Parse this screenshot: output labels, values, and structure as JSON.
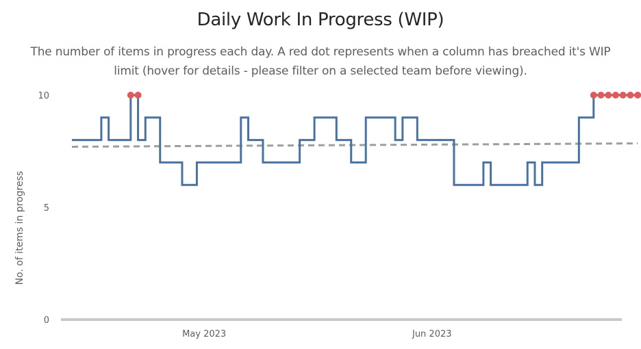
{
  "chart_data": {
    "type": "line",
    "title": "Daily Work In Progress (WIP)",
    "subtitle": "The number of items in progress each day. A red dot represents when a column has breached it's WIP limit (hover for details - please filter on a selected team before viewing).",
    "xlabel": "",
    "ylabel": "No. of items in progress",
    "ylim": [
      0,
      10
    ],
    "yticks": [
      0,
      5,
      10
    ],
    "xlim": [
      "2023-04-13",
      "2023-06-26"
    ],
    "xticks": [
      {
        "date": "2023-05-01",
        "label": "May 2023"
      },
      {
        "date": "2023-06-01",
        "label": "Jun 2023"
      }
    ],
    "grid": false,
    "series": [
      {
        "type": "step",
        "color": "#4a72a0",
        "points": [
          [
            "2023-04-13",
            8
          ],
          [
            "2023-04-17",
            9
          ],
          [
            "2023-04-18",
            8
          ],
          [
            "2023-04-21",
            10
          ],
          [
            "2023-04-22",
            8
          ],
          [
            "2023-04-23",
            9
          ],
          [
            "2023-04-25",
            7
          ],
          [
            "2023-04-28",
            6
          ],
          [
            "2023-04-30",
            7
          ],
          [
            "2023-05-06",
            9
          ],
          [
            "2023-05-07",
            8
          ],
          [
            "2023-05-09",
            7
          ],
          [
            "2023-05-14",
            8
          ],
          [
            "2023-05-16",
            9
          ],
          [
            "2023-05-19",
            8
          ],
          [
            "2023-05-21",
            7
          ],
          [
            "2023-05-23",
            9
          ],
          [
            "2023-05-27",
            8
          ],
          [
            "2023-05-28",
            9
          ],
          [
            "2023-05-30",
            8
          ],
          [
            "2023-06-04",
            6
          ],
          [
            "2023-06-08",
            7
          ],
          [
            "2023-06-09",
            6
          ],
          [
            "2023-06-14",
            7
          ],
          [
            "2023-06-15",
            6
          ],
          [
            "2023-06-16",
            7
          ],
          [
            "2023-06-21",
            9
          ],
          [
            "2023-06-23",
            10
          ],
          [
            "2023-06-29",
            10
          ]
        ]
      },
      {
        "type": "trend",
        "color": "#9e9e9e",
        "points": [
          [
            "2023-04-13",
            7.7
          ],
          [
            "2023-06-29",
            7.85
          ]
        ]
      }
    ],
    "breaches": {
      "color": "#e05a5c",
      "points": [
        [
          "2023-04-21",
          10
        ],
        [
          "2023-04-22",
          10
        ],
        [
          "2023-06-23",
          10
        ],
        [
          "2023-06-24",
          10
        ],
        [
          "2023-06-25",
          10
        ],
        [
          "2023-06-26",
          10
        ],
        [
          "2023-06-27",
          10
        ],
        [
          "2023-06-28",
          10
        ],
        [
          "2023-06-29",
          10
        ]
      ]
    },
    "baseline_color": "#c8c8c8"
  }
}
